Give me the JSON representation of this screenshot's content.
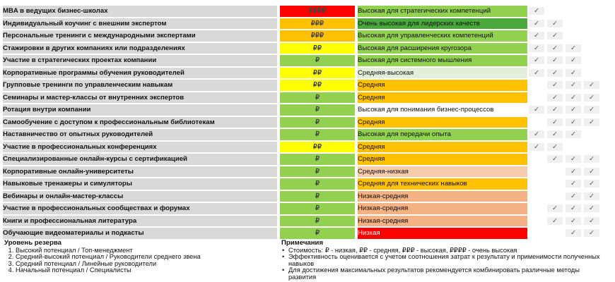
{
  "colors": {
    "Очень высокая": "#ff0000",
    "Высокая": "#ffc000",
    "Средняя": "#ffff00",
    "Низкая": "#92d050",
    "eff_high": "#92d050",
    "eff_very_high": "#4aa83a",
    "eff_mid_high": "#e2efda",
    "eff_mid": "#ffc000",
    "eff_mid_low": "#f8cbad",
    "eff_low_mid": "#f4b183",
    "eff_low": "#ff0000"
  },
  "rows": [
    {
      "name": "MBA в ведущих бизнес-школах",
      "cost": "₽₽₽₽",
      "cost_level": "Очень высокая",
      "eff": "Высокая для стратегических компетенций",
      "eff_level": "eff_high",
      "checks": [
        true,
        false,
        false,
        false
      ]
    },
    {
      "name": "Индивидуальный коучинг с внешним экспертом",
      "cost": "₽₽₽",
      "cost_level": "Высокая",
      "eff": "Очень высокая для лидерских качеств",
      "eff_level": "eff_very_high",
      "checks": [
        true,
        true,
        false,
        false
      ]
    },
    {
      "name": "Персональные тренинги с международными экспертами",
      "cost": "₽₽₽",
      "cost_level": "Высокая",
      "eff": "Высокая для управленческих компетенций",
      "eff_level": "eff_high",
      "checks": [
        true,
        true,
        false,
        false
      ]
    },
    {
      "name": "Стажировки в других компаниях или подразделениях",
      "cost": "₽₽",
      "cost_level": "Средняя",
      "eff": "Высокая для расширения кругозора",
      "eff_level": "eff_high",
      "checks": [
        true,
        true,
        true,
        false
      ]
    },
    {
      "name": "Участие в стратегических проектах компании",
      "cost": "₽",
      "cost_level": "Низкая",
      "eff": "Высокая для системного мышления",
      "eff_level": "eff_high",
      "checks": [
        true,
        true,
        true,
        false
      ]
    },
    {
      "name": "Корпоративные программы обучения руководителей",
      "cost": "₽₽",
      "cost_level": "Средняя",
      "eff": "Средняя-высокая",
      "eff_level": "eff_mid_high",
      "checks": [
        true,
        true,
        true,
        false
      ]
    },
    {
      "name": "Групповые тренинги по управленческим навыкам",
      "cost": "₽₽",
      "cost_level": "Средняя",
      "eff": "Средняя",
      "eff_level": "eff_mid",
      "checks": [
        false,
        true,
        true,
        true
      ]
    },
    {
      "name": "Семинары и мастер-классы от внутренних экспертов",
      "cost": "₽",
      "cost_level": "Низкая",
      "eff": "Средняя",
      "eff_level": "eff_mid",
      "checks": [
        false,
        true,
        true,
        true
      ]
    },
    {
      "name": "Ротация внутри компании",
      "cost": "₽",
      "cost_level": "Низкая",
      "eff": "Высокая для понимания бизнес-процессов",
      "eff_level": "none",
      "checks": [
        true,
        true,
        true,
        true
      ]
    },
    {
      "name": "Самообучение с доступом к профессиональным библиотекам",
      "cost": "₽",
      "cost_level": "Низкая",
      "eff": "Средняя",
      "eff_level": "eff_mid",
      "checks": [
        false,
        true,
        true,
        true
      ]
    },
    {
      "name": "Наставничество от опытных руководителей",
      "cost": "₽",
      "cost_level": "Низкая",
      "eff": "Высокая для передачи опыта",
      "eff_level": "eff_high",
      "checks": [
        true,
        true,
        true,
        false
      ]
    },
    {
      "name": "Участие в профессиональных конференциях",
      "cost": "₽₽",
      "cost_level": "Средняя",
      "eff": "Средняя",
      "eff_level": "eff_mid",
      "checks": [
        true,
        true,
        false,
        false
      ]
    },
    {
      "name": "Специализированные онлайн-курсы с сертификацией",
      "cost": "₽",
      "cost_level": "Низкая",
      "eff": "Средняя",
      "eff_level": "eff_mid",
      "checks": [
        false,
        true,
        true,
        true
      ]
    },
    {
      "name": "Корпоративные онлайн-университеты",
      "cost": "₽",
      "cost_level": "Низкая",
      "eff": "Средняя-низкая",
      "eff_level": "eff_mid_low",
      "checks": [
        false,
        false,
        true,
        true
      ]
    },
    {
      "name": "Навыковые тренажеры и симуляторы",
      "cost": "₽",
      "cost_level": "Низкая",
      "eff": "Средняя для технических навыков",
      "eff_level": "eff_mid",
      "checks": [
        false,
        false,
        true,
        true
      ]
    },
    {
      "name": "Вебинары и онлайн-мастер-классы",
      "cost": "₽",
      "cost_level": "Низкая",
      "eff": "Низкая-средняя",
      "eff_level": "eff_low_mid",
      "checks": [
        false,
        false,
        true,
        true
      ]
    },
    {
      "name": "Участие в профессиональных сообществах и форумах",
      "cost": "₽",
      "cost_level": "Низкая",
      "eff": "Низкая-средняя",
      "eff_level": "eff_low_mid",
      "checks": [
        false,
        true,
        true,
        true
      ]
    },
    {
      "name": "Книги и профессиональная литература",
      "cost": "₽",
      "cost_level": "Низкая",
      "eff": "Низкая-средняя",
      "eff_level": "eff_low_mid",
      "checks": [
        false,
        true,
        true,
        true
      ]
    },
    {
      "name": "Обучающие видеоматериалы и подкасты",
      "cost": "₽",
      "cost_level": "Низкая",
      "eff": "Низкая",
      "eff_level": "eff_low",
      "checks": [
        false,
        false,
        true,
        true
      ]
    }
  ],
  "check_mark": "✓",
  "legend": {
    "title": "Уровень резерва",
    "items": [
      "Высокий потенциал / Топ-менеджмент",
      "Средний-высокий потенциал / Руководители среднего звена",
      "Средний потенциал / Линейные руководители",
      "Начальный потенциал / Специалисты"
    ]
  },
  "notes": {
    "title": "Примечания",
    "items": [
      "Стоимость: ₽ - низкая, ₽₽ - средняя, ₽₽₽ - высокая, ₽₽₽₽ - очень высокая",
      "Эффективность оценивается с учетом соотношения затрат к результату и применимости полученных навыков",
      "Для достижения максимальных результатов рекомендуется комбинировать различные методы развития"
    ]
  }
}
